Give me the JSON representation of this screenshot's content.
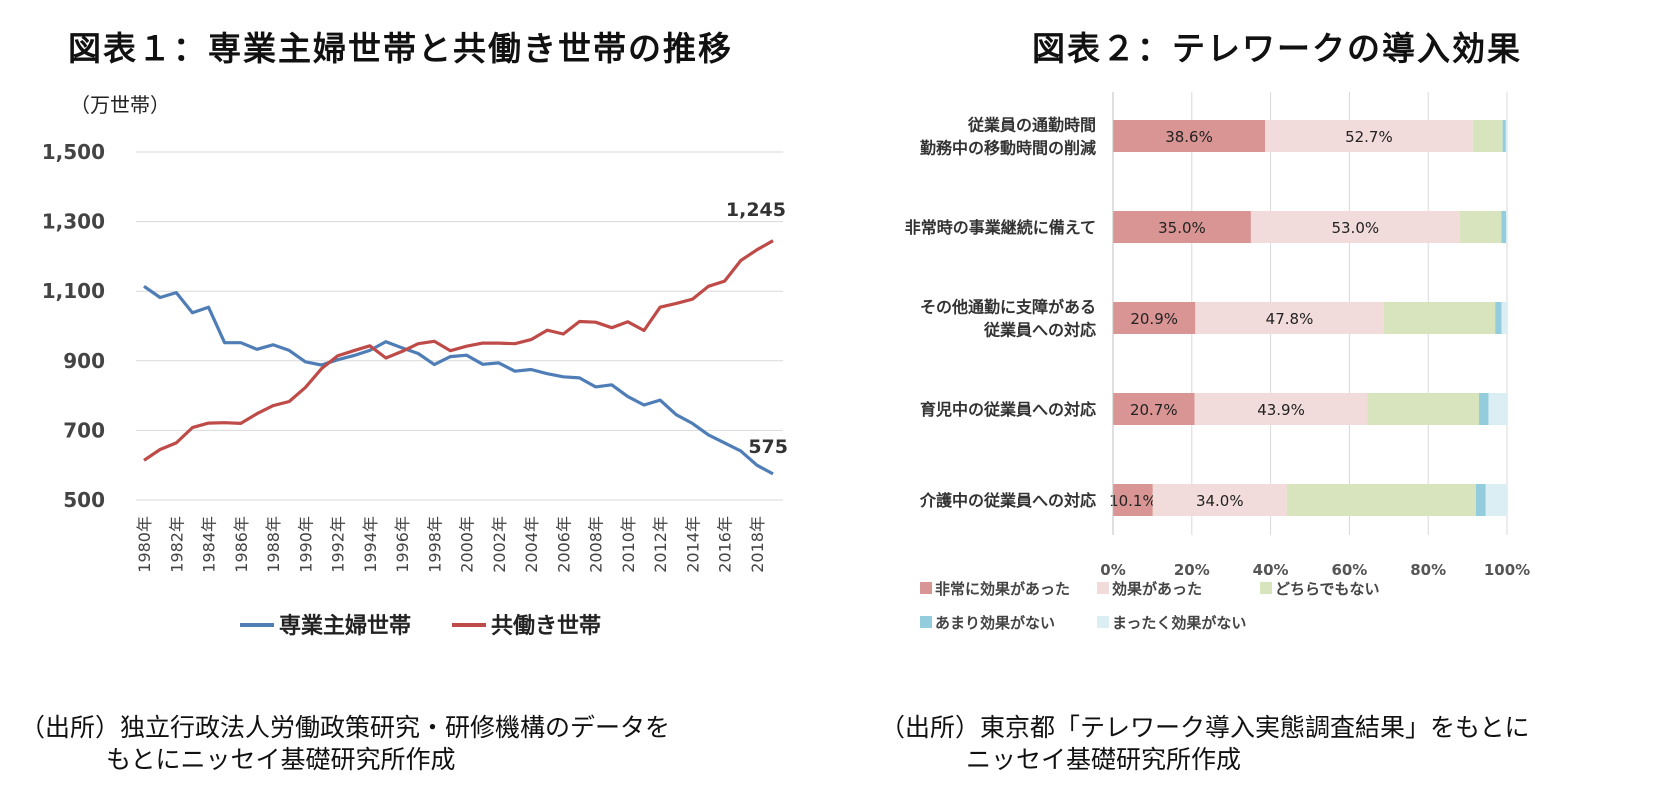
{
  "left": {
    "title": "図表１：専業主婦世帯と共働き世帯の推移",
    "unit_label": "（万世帯）",
    "source_line1": "（出所）独立行政法人労働政策研究・研修機構のデータを",
    "source_line2": "もとにニッセイ基礎研究所作成",
    "end_labels": [
      "1,245",
      "575"
    ],
    "colors": {
      "housewife": "#4f7db6",
      "dual": "#bf4b48",
      "grid": "#d9d9d9"
    }
  },
  "right": {
    "title": "図表２：テレワークの導入効果",
    "source_line1": "（出所）東京都「テレワーク導入実態調査結果」をもとに",
    "source_line2": "ニッセイ基礎研究所作成",
    "colors": [
      "#d99594",
      "#f2dcdb",
      "#d7e4bd",
      "#93cddd",
      "#dbeef4"
    ]
  },
  "chart_data": [
    {
      "type": "line",
      "title": "図表１：専業主婦世帯と共働き世帯の推移",
      "ylabel": "（万世帯）",
      "ylim": [
        500,
        1500
      ],
      "yticks": [
        "500",
        "700",
        "900",
        "1,100",
        "1,300",
        "1,500"
      ],
      "ytick_values": [
        500,
        700,
        900,
        1100,
        1300,
        1500
      ],
      "x": [
        "1980年",
        "1981年",
        "1982年",
        "1983年",
        "1984年",
        "1985年",
        "1986年",
        "1987年",
        "1988年",
        "1989年",
        "1990年",
        "1991年",
        "1992年",
        "1993年",
        "1994年",
        "1995年",
        "1996年",
        "1997年",
        "1998年",
        "1999年",
        "2000年",
        "2001年",
        "2002年",
        "2003年",
        "2004年",
        "2005年",
        "2006年",
        "2007年",
        "2008年",
        "2009年",
        "2010年",
        "2011年",
        "2012年",
        "2013年",
        "2014年",
        "2015年",
        "2016年",
        "2017年",
        "2018年",
        "2019年"
      ],
      "xticks": [
        "1980年",
        "1982年",
        "1984年",
        "1986年",
        "1988年",
        "1990年",
        "1992年",
        "1994年",
        "1996年",
        "1998年",
        "2000年",
        "2002年",
        "2004年",
        "2006年",
        "2008年",
        "2010年",
        "2012年",
        "2014年",
        "2016年",
        "2018年"
      ],
      "grid": true,
      "legend_position": "bottom",
      "series": [
        {
          "name": "専業主婦世帯",
          "values": [
            1114,
            1082,
            1096,
            1038,
            1054,
            952,
            952,
            933,
            946,
            930,
            897,
            888,
            903,
            915,
            930,
            955,
            937,
            921,
            889,
            912,
            916,
            890,
            894,
            870,
            875,
            863,
            854,
            851,
            825,
            831,
            797,
            773,
            787,
            745,
            720,
            687,
            664,
            641,
            600,
            575
          ]
        },
        {
          "name": "共働き世帯",
          "values": [
            614,
            645,
            664,
            708,
            721,
            722,
            720,
            748,
            771,
            783,
            823,
            877,
            914,
            929,
            943,
            908,
            927,
            949,
            956,
            929,
            942,
            951,
            951,
            949,
            961,
            988,
            977,
            1013,
            1011,
            995,
            1012,
            987,
            1054,
            1065,
            1077,
            1114,
            1129,
            1188,
            1219,
            1245
          ]
        }
      ]
    },
    {
      "type": "bar",
      "orientation": "horizontal-stacked",
      "title": "図表２：テレワークの導入効果",
      "categories": [
        "従業員の通勤時間\n勤務中の移動時間の削減",
        "非常時の事業継続に備えて",
        "その他通勤に支障がある\n従業員への対応",
        "育児中の従業員への対応",
        "介護中の従業員への対応"
      ],
      "xlim": [
        0,
        100
      ],
      "xticks": [
        "0%",
        "20%",
        "40%",
        "60%",
        "80%",
        "100%"
      ],
      "xtick_values": [
        0,
        20,
        40,
        60,
        80,
        100
      ],
      "grid": true,
      "legend_position": "bottom",
      "series": [
        {
          "name": "非常に効果があった",
          "values": [
            38.6,
            35.0,
            20.9,
            20.7,
            10.1
          ],
          "labels": [
            "38.6%",
            "35.0%",
            "20.9%",
            "20.7%",
            "10.1%"
          ]
        },
        {
          "name": "効果があった",
          "values": [
            52.7,
            53.0,
            47.8,
            43.9,
            34.0
          ],
          "labels": [
            "52.7%",
            "53.0%",
            "47.8%",
            "43.9%",
            "34.0%"
          ]
        },
        {
          "name": "どちらでもない",
          "values": [
            7.6,
            10.6,
            28.3,
            28.3,
            48.0
          ]
        },
        {
          "name": "あまり効果がない",
          "values": [
            0.8,
            1.2,
            1.6,
            2.4,
            2.5
          ]
        },
        {
          "name": "まったく効果がない",
          "values": [
            0.3,
            0.2,
            1.4,
            4.7,
            5.4
          ]
        }
      ]
    }
  ]
}
